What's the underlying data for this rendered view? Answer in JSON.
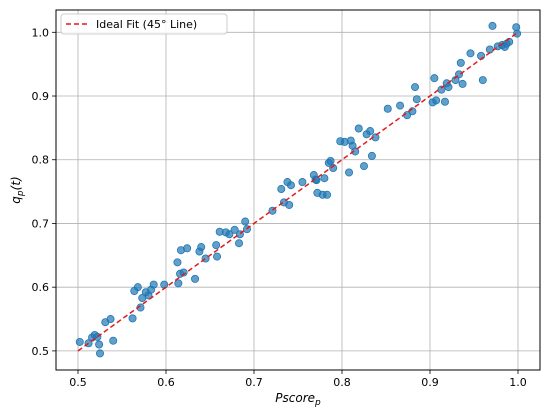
{
  "chart_data": {
    "type": "scatter",
    "xlabel_main": "Pscore",
    "xlabel_sub": "p",
    "ylabel_main": "q",
    "ylabel_sub": "p",
    "ylabel_suffix": "(t)",
    "xlim": [
      0.475,
      1.025
    ],
    "ylim": [
      0.47,
      1.035
    ],
    "xticks": [
      0.5,
      0.6,
      0.7,
      0.8,
      0.9,
      1.0
    ],
    "xtick_labels": [
      "0.5",
      "0.6",
      "0.7",
      "0.8",
      "0.9",
      "1.0"
    ],
    "yticks": [
      0.5,
      0.6,
      0.7,
      0.8,
      0.9,
      1.0
    ],
    "ytick_labels": [
      "0.5",
      "0.6",
      "0.7",
      "0.8",
      "0.9",
      "1.0"
    ],
    "grid": true,
    "legend_position": "top-left",
    "fit_line": {
      "name": "Ideal Fit (45° Line)",
      "x": [
        0.5,
        1.0
      ],
      "y": [
        0.5,
        1.0
      ],
      "color": "#e31a1c"
    },
    "point_color": "#1f77b4",
    "points": [
      [
        0.502,
        0.514
      ],
      [
        0.512,
        0.512
      ],
      [
        0.516,
        0.521
      ],
      [
        0.519,
        0.525
      ],
      [
        0.522,
        0.522
      ],
      [
        0.524,
        0.51
      ],
      [
        0.525,
        0.496
      ],
      [
        0.531,
        0.545
      ],
      [
        0.537,
        0.55
      ],
      [
        0.54,
        0.516
      ],
      [
        0.562,
        0.551
      ],
      [
        0.564,
        0.594
      ],
      [
        0.568,
        0.6
      ],
      [
        0.571,
        0.568
      ],
      [
        0.573,
        0.583
      ],
      [
        0.577,
        0.592
      ],
      [
        0.58,
        0.587
      ],
      [
        0.583,
        0.596
      ],
      [
        0.586,
        0.604
      ],
      [
        0.598,
        0.604
      ],
      [
        0.613,
        0.639
      ],
      [
        0.614,
        0.606
      ],
      [
        0.616,
        0.621
      ],
      [
        0.617,
        0.658
      ],
      [
        0.62,
        0.623
      ],
      [
        0.624,
        0.661
      ],
      [
        0.633,
        0.613
      ],
      [
        0.638,
        0.656
      ],
      [
        0.64,
        0.663
      ],
      [
        0.645,
        0.645
      ],
      [
        0.657,
        0.666
      ],
      [
        0.658,
        0.648
      ],
      [
        0.661,
        0.687
      ],
      [
        0.668,
        0.686
      ],
      [
        0.672,
        0.683
      ],
      [
        0.678,
        0.69
      ],
      [
        0.683,
        0.669
      ],
      [
        0.684,
        0.683
      ],
      [
        0.69,
        0.703
      ],
      [
        0.692,
        0.691
      ],
      [
        0.721,
        0.72
      ],
      [
        0.731,
        0.754
      ],
      [
        0.734,
        0.733
      ],
      [
        0.738,
        0.765
      ],
      [
        0.74,
        0.729
      ],
      [
        0.742,
        0.76
      ],
      [
        0.755,
        0.765
      ],
      [
        0.768,
        0.776
      ],
      [
        0.77,
        0.769
      ],
      [
        0.771,
        0.768
      ],
      [
        0.772,
        0.748
      ],
      [
        0.778,
        0.745
      ],
      [
        0.78,
        0.771
      ],
      [
        0.783,
        0.745
      ],
      [
        0.785,
        0.795
      ],
      [
        0.787,
        0.798
      ],
      [
        0.79,
        0.787
      ],
      [
        0.798,
        0.829
      ],
      [
        0.803,
        0.828
      ],
      [
        0.808,
        0.78
      ],
      [
        0.81,
        0.83
      ],
      [
        0.812,
        0.822
      ],
      [
        0.815,
        0.813
      ],
      [
        0.819,
        0.849
      ],
      [
        0.825,
        0.79
      ],
      [
        0.828,
        0.84
      ],
      [
        0.832,
        0.845
      ],
      [
        0.834,
        0.806
      ],
      [
        0.838,
        0.835
      ],
      [
        0.852,
        0.88
      ],
      [
        0.866,
        0.885
      ],
      [
        0.874,
        0.87
      ],
      [
        0.88,
        0.876
      ],
      [
        0.883,
        0.914
      ],
      [
        0.885,
        0.895
      ],
      [
        0.903,
        0.89
      ],
      [
        0.905,
        0.928
      ],
      [
        0.907,
        0.893
      ],
      [
        0.913,
        0.91
      ],
      [
        0.917,
        0.891
      ],
      [
        0.919,
        0.92
      ],
      [
        0.921,
        0.914
      ],
      [
        0.929,
        0.925
      ],
      [
        0.933,
        0.934
      ],
      [
        0.935,
        0.952
      ],
      [
        0.937,
        0.919
      ],
      [
        0.946,
        0.967
      ],
      [
        0.958,
        0.963
      ],
      [
        0.96,
        0.925
      ],
      [
        0.968,
        0.973
      ],
      [
        0.971,
        1.01
      ],
      [
        0.977,
        0.978
      ],
      [
        0.982,
        0.98
      ],
      [
        0.985,
        0.977
      ],
      [
        0.987,
        0.982
      ],
      [
        0.99,
        0.985
      ],
      [
        0.998,
        1.008
      ],
      [
        0.999,
        0.998
      ]
    ]
  }
}
